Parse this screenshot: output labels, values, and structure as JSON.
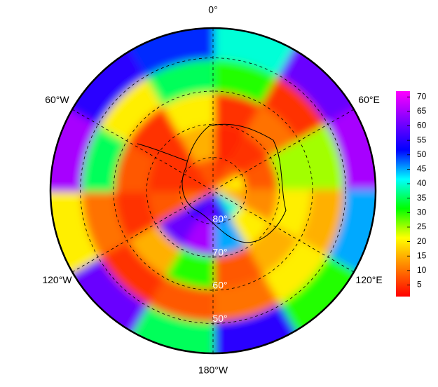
{
  "chart_data": {
    "type": "polar_heatmap",
    "lat_edges": [
      90,
      80,
      70,
      60,
      50,
      41
    ],
    "lon_edges": [
      0,
      30,
      60,
      90,
      120,
      150,
      180,
      210,
      240,
      270,
      300,
      330,
      360
    ],
    "values": [
      [
        5,
        8,
        20,
        15,
        40,
        55,
        60,
        55,
        10,
        5,
        5,
        8
      ],
      [
        4,
        5,
        8,
        12,
        20,
        45,
        65,
        60,
        8,
        5,
        5,
        15
      ],
      [
        5,
        10,
        25,
        20,
        15,
        8,
        30,
        15,
        5,
        8,
        5,
        20
      ],
      [
        30,
        5,
        25,
        15,
        20,
        10,
        8,
        5,
        10,
        35,
        20,
        35
      ],
      [
        40,
        60,
        65,
        45,
        30,
        55,
        35,
        60,
        20,
        65,
        55,
        50
      ]
    ],
    "lonticks": [
      {
        "value": 0,
        "label": "0°"
      },
      {
        "value": 60,
        "label": "60°E"
      },
      {
        "value": 120,
        "label": "120°E"
      },
      {
        "value": 180,
        "label": "180°W"
      },
      {
        "value": 240,
        "label": "120°W"
      },
      {
        "value": 300,
        "label": "60°W"
      }
    ],
    "latticks": [
      {
        "value": 80,
        "label": "80°"
      },
      {
        "value": 70,
        "label": "70°"
      },
      {
        "value": 60,
        "label": "60°"
      },
      {
        "value": 50,
        "label": "50°"
      }
    ],
    "colorscale": [
      "#ff0000",
      "#ff8000",
      "#ffff00",
      "#00ff00",
      "#00ffff",
      "#0000ff",
      "#8000ff",
      "#ff00ff"
    ],
    "colorbar": {
      "lim": [
        1,
        72
      ],
      "ticks": [
        5,
        10,
        15,
        20,
        25,
        30,
        35,
        40,
        45,
        50,
        55,
        60,
        65,
        70
      ]
    }
  }
}
